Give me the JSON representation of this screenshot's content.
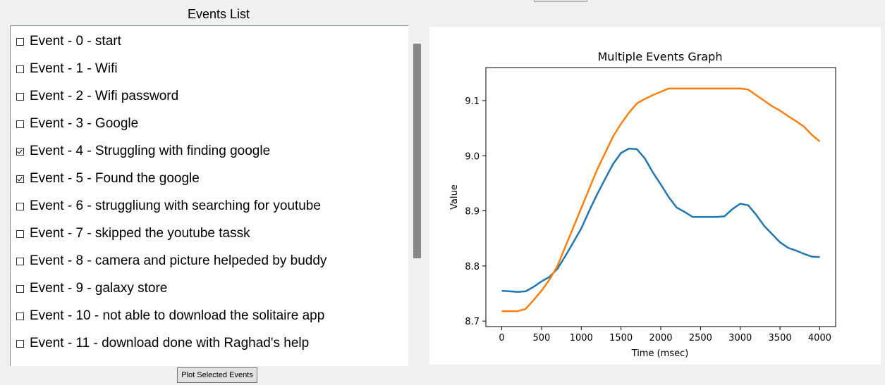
{
  "events_panel": {
    "title": "Events List",
    "items": [
      {
        "label": "Event - 0 - start",
        "checked": false
      },
      {
        "label": "Event - 1 - Wifi",
        "checked": false
      },
      {
        "label": "Event - 2 - Wifi password",
        "checked": false
      },
      {
        "label": "Event - 3 - Google",
        "checked": false
      },
      {
        "label": "Event - 4 - Struggling with finding google",
        "checked": true
      },
      {
        "label": "Event - 5 - Found the google",
        "checked": true
      },
      {
        "label": "Event - 6 - struggliung with searching for youtube",
        "checked": false
      },
      {
        "label": "Event - 7 - skipped the youtube tassk",
        "checked": false
      },
      {
        "label": "Event - 8 - camera and picture helpeded by buddy",
        "checked": false
      },
      {
        "label": "Event - 9 - galaxy store",
        "checked": false
      },
      {
        "label": "Event - 10 - not able to download the solitaire app",
        "checked": false
      },
      {
        "label": "Event - 11 - download done with Raghad's help",
        "checked": false
      }
    ]
  },
  "plot_button_label": "Plot Selected Events",
  "chart_data": {
    "type": "line",
    "title": "Multiple Events Graph",
    "xlabel": "Time (msec)",
    "ylabel": "Value",
    "xlim": [
      -200,
      4200
    ],
    "ylim": [
      8.69,
      9.16
    ],
    "xticks": [
      0,
      500,
      1000,
      1500,
      2000,
      2500,
      3000,
      3500,
      4000
    ],
    "yticks": [
      8.7,
      8.8,
      8.9,
      9.0,
      9.1
    ],
    "ytick_labels": [
      "8.7",
      "8.8",
      "8.9",
      "9.0",
      "9.1"
    ],
    "grid": false,
    "series": [
      {
        "color": "#1f77b4",
        "x": [
          0,
          100,
          200,
          300,
          400,
          500,
          600,
          700,
          800,
          900,
          1000,
          1100,
          1200,
          1300,
          1400,
          1500,
          1600,
          1700,
          1800,
          1900,
          2000,
          2100,
          2200,
          2300,
          2400,
          2500,
          2600,
          2700,
          2800,
          2900,
          3000,
          3100,
          3200,
          3300,
          3400,
          3500,
          3600,
          3700,
          3800,
          3900,
          4000
        ],
        "y": [
          8.755,
          8.754,
          8.753,
          8.754,
          8.762,
          8.772,
          8.78,
          8.795,
          8.818,
          8.843,
          8.868,
          8.9,
          8.93,
          8.958,
          8.985,
          9.005,
          9.013,
          9.012,
          8.995,
          8.97,
          8.948,
          8.925,
          8.906,
          8.898,
          8.889,
          8.889,
          8.889,
          8.889,
          8.89,
          8.903,
          8.913,
          8.91,
          8.893,
          8.873,
          8.858,
          8.843,
          8.833,
          8.828,
          8.822,
          8.817,
          8.816
        ]
      },
      {
        "color": "#ff7f0e",
        "x": [
          0,
          100,
          200,
          300,
          400,
          500,
          600,
          700,
          800,
          900,
          1000,
          1100,
          1200,
          1300,
          1400,
          1500,
          1600,
          1700,
          1800,
          1900,
          2000,
          2100,
          2200,
          2300,
          2400,
          2500,
          2600,
          2700,
          2800,
          2900,
          3000,
          3100,
          3200,
          3300,
          3400,
          3500,
          3600,
          3700,
          3800,
          3900,
          4000
        ],
        "y": [
          8.718,
          8.718,
          8.718,
          8.722,
          8.738,
          8.755,
          8.775,
          8.8,
          8.835,
          8.87,
          8.905,
          8.94,
          8.975,
          9.005,
          9.035,
          9.058,
          9.078,
          9.095,
          9.103,
          9.11,
          9.116,
          9.122,
          9.122,
          9.122,
          9.122,
          9.122,
          9.122,
          9.122,
          9.122,
          9.122,
          9.122,
          9.12,
          9.11,
          9.1,
          9.09,
          9.082,
          9.072,
          9.063,
          9.053,
          9.038,
          9.026
        ]
      }
    ]
  }
}
